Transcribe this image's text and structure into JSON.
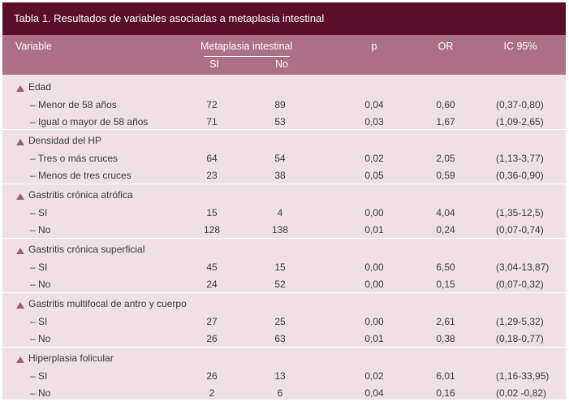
{
  "caption": "Tabla 1. Resultados de variables asociadas a metaplasia intestinal",
  "headers": {
    "variable": "Variable",
    "metaplasia": "Metaplasia intestinal",
    "si": "SI",
    "no": "No",
    "p": "p",
    "or": "OR",
    "ic": "IC 95%"
  },
  "groups": [
    {
      "label": "Edad",
      "rows": [
        {
          "label": "–   Menor de 58 años",
          "si": "72",
          "no": "89",
          "p": "0,04",
          "or": "0,60",
          "ic": "(0,37-0,80)"
        },
        {
          "label": "–   Igual o mayor de 58 años",
          "si": "71",
          "no": "53",
          "p": "0,03",
          "or": "1,67",
          "ic": "(1,09-2,65)"
        }
      ]
    },
    {
      "label": "Densidad del HP",
      "rows": [
        {
          "label": "–   Tres o más cruces",
          "si": "64",
          "no": "54",
          "p": "0,02",
          "or": "2,05",
          "ic": "(1,13-3,77)"
        },
        {
          "label": "–   Menos de tres cruces",
          "si": "23",
          "no": "38",
          "p": "0,05",
          "or": "0,59",
          "ic": "(0,36-0,90)"
        }
      ]
    },
    {
      "label": "Gastritis crónica atrófica",
      "rows": [
        {
          "label": "–   SI",
          "si": "15",
          "no": "4",
          "p": "0,00",
          "or": "4,04",
          "ic": "(1,35-12,5)"
        },
        {
          "label": "–   No",
          "si": "128",
          "no": "138",
          "p": "0,01",
          "or": "0,24",
          "ic": "(0,07-0,74)"
        }
      ]
    },
    {
      "label": "Gastritis crónica superficial",
      "rows": [
        {
          "label": "–   SI",
          "si": "45",
          "no": "15",
          "p": "0,00",
          "or": "6,50",
          "ic": "(3,04-13,87)"
        },
        {
          "label": "–   No",
          "si": "24",
          "no": "52",
          "p": "0,00",
          "or": "0,15",
          "ic": "(0,07-0,32)"
        }
      ]
    },
    {
      "label": "Gastritis multifocal de antro y cuerpo",
      "rows": [
        {
          "label": "–   SI",
          "si": "27",
          "no": "25",
          "p": "0,00",
          "or": "2,61",
          "ic": "(1,29-5,32)"
        },
        {
          "label": "–   No",
          "si": "26",
          "no": "63",
          "p": "0,01",
          "or": "0,38",
          "ic": "(0,18-0,77)"
        }
      ]
    },
    {
      "label": "Hiperplasia folicular",
      "rows": [
        {
          "label": "–   SI",
          "si": "26",
          "no": "13",
          "p": "0,02",
          "or": "6,01",
          "ic": "(1,16-33,95)"
        },
        {
          "label": "–   No",
          "si": "2",
          "no": "6",
          "p": "0,04",
          "or": "0,16",
          "ic": "(0,02 -0,82)"
        }
      ]
    }
  ]
}
